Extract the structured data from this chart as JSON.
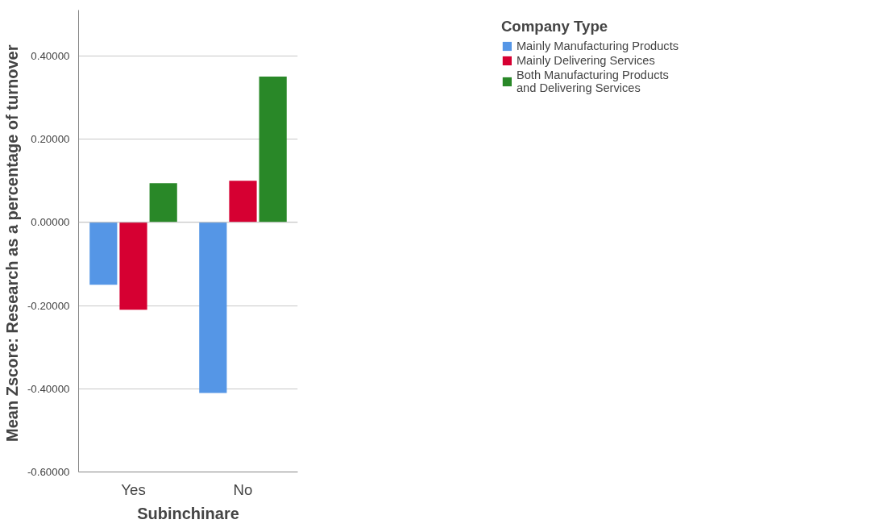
{
  "chart_data": {
    "type": "bar",
    "xlabel": "Subinchinare",
    "ylabel": "Mean Zscore:  Research as a percentage of turnover",
    "legend_title": "Company Type",
    "categories": [
      "Yes",
      "No"
    ],
    "series": [
      {
        "name": "Mainly Manufacturing Products",
        "color": "#5596e6",
        "values": [
          -0.15,
          -0.41
        ]
      },
      {
        "name": "Mainly Delivering Services",
        "color": "#d60032",
        "values": [
          -0.21,
          0.1
        ]
      },
      {
        "name": "Both Manufacturing Products and Delivering Services",
        "color": "#298828",
        "values": [
          0.094,
          0.35
        ]
      }
    ],
    "ylim": [
      -0.6,
      0.51
    ],
    "yticks": [
      {
        "value": -0.6,
        "label": "-0.60000"
      },
      {
        "value": -0.4,
        "label": "-0.40000"
      },
      {
        "value": -0.2,
        "label": "-0.20000"
      },
      {
        "value": 0,
        "label": "0.00000"
      },
      {
        "value": 0.2,
        "label": "0.20000"
      },
      {
        "value": 0.4,
        "label": "0.40000"
      }
    ],
    "grid": "y",
    "legend": "top right"
  }
}
